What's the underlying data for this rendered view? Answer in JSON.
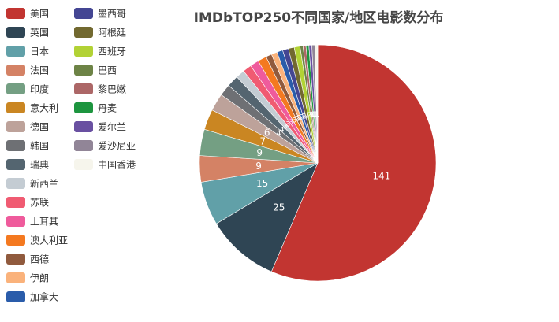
{
  "chart_data": {
    "type": "pie",
    "title": "IMDbTOP250不同国家/地区电影数分布",
    "total": 250,
    "categories": [
      "美国",
      "英国",
      "日本",
      "法国",
      "印度",
      "意大利",
      "德国",
      "韩国",
      "瑞典",
      "新西兰",
      "苏联",
      "土耳其",
      "澳大利亚",
      "西德",
      "伊朗",
      "加拿大",
      "墨西哥",
      "阿根廷",
      "西班牙",
      "巴西",
      "黎巴嫩",
      "丹麦",
      "爱尔兰",
      "爱沙尼亚",
      "中国香港"
    ],
    "values": [
      141,
      25,
      15,
      9,
      9,
      7,
      6,
      4,
      4,
      3,
      3,
      3,
      3,
      2,
      2,
      2,
      2,
      2,
      2,
      1,
      1,
      1,
      1,
      1,
      1
    ],
    "colors": [
      "#c23531",
      "#2f4554",
      "#61a0a8",
      "#d48265",
      "#749f83",
      "#ca8622",
      "#bda29a",
      "#6e7074",
      "#546570",
      "#c4ccd3",
      "#f05b72",
      "#ef5b9c",
      "#f47920",
      "#905a3d",
      "#fab27b",
      "#2a5caa",
      "#444693",
      "#726930",
      "#b2d235",
      "#6d8346",
      "#ac6767",
      "#1d953f",
      "#6950a1",
      "#918597",
      "#f6f5ec"
    ],
    "legend_position": "left"
  }
}
